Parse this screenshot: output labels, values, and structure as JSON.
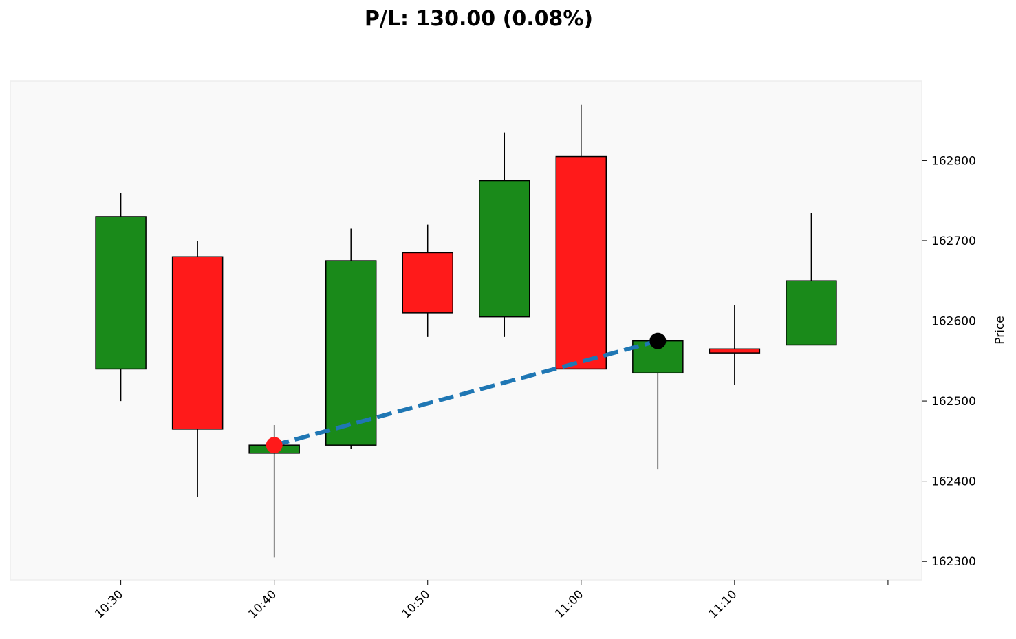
{
  "chart_data": {
    "type": "candlestick",
    "title": "P/L: 130.00 (0.08%)",
    "ylabel": "Price",
    "xlabel": "",
    "ylim": [
      162277,
      162899
    ],
    "xlim_minutes_from_1030": [
      -7.2,
      52.2
    ],
    "yticks": [
      162300,
      162400,
      162500,
      162600,
      162700,
      162800
    ],
    "xticks": [
      {
        "minute": 0,
        "label": "10:30"
      },
      {
        "minute": 10,
        "label": "10:40"
      },
      {
        "minute": 20,
        "label": "10:50"
      },
      {
        "minute": 30,
        "label": "11:00"
      },
      {
        "minute": 40,
        "label": "11:10"
      },
      {
        "minute": 50,
        "label": ""
      }
    ],
    "candles": [
      {
        "time": "10:30",
        "minute": 0,
        "open": 162540,
        "high": 162760,
        "low": 162500,
        "close": 162730
      },
      {
        "time": "10:35",
        "minute": 5,
        "open": 162680,
        "high": 162700,
        "low": 162380,
        "close": 162465
      },
      {
        "time": "10:40",
        "minute": 10,
        "open": 162435,
        "high": 162470,
        "low": 162305,
        "close": 162445
      },
      {
        "time": "10:45",
        "minute": 15,
        "open": 162445,
        "high": 162715,
        "low": 162440,
        "close": 162675
      },
      {
        "time": "10:50",
        "minute": 20,
        "open": 162685,
        "high": 162720,
        "low": 162580,
        "close": 162610
      },
      {
        "time": "10:55",
        "minute": 25,
        "open": 162605,
        "high": 162835,
        "low": 162580,
        "close": 162775
      },
      {
        "time": "11:00",
        "minute": 30,
        "open": 162805,
        "high": 162870,
        "low": 162540,
        "close": 162540
      },
      {
        "time": "11:05",
        "minute": 35,
        "open": 162535,
        "high": 162575,
        "low": 162415,
        "close": 162575
      },
      {
        "time": "11:10",
        "minute": 40,
        "open": 162565,
        "high": 162620,
        "low": 162520,
        "close": 162560
      },
      {
        "time": "11:15",
        "minute": 45,
        "open": 162570,
        "high": 162735,
        "low": 162570,
        "close": 162650
      }
    ],
    "trade": {
      "entry": {
        "time": "10:40",
        "minute": 10,
        "price": 162445,
        "color": "#ff1a1a"
      },
      "exit": {
        "time": "11:05",
        "minute": 35,
        "price": 162575,
        "color": "#000000"
      },
      "line_color": "#1f77b4"
    },
    "colors": {
      "up": "#1a8a1a",
      "down": "#ff1a1a",
      "background": "#f9f9f9"
    }
  }
}
